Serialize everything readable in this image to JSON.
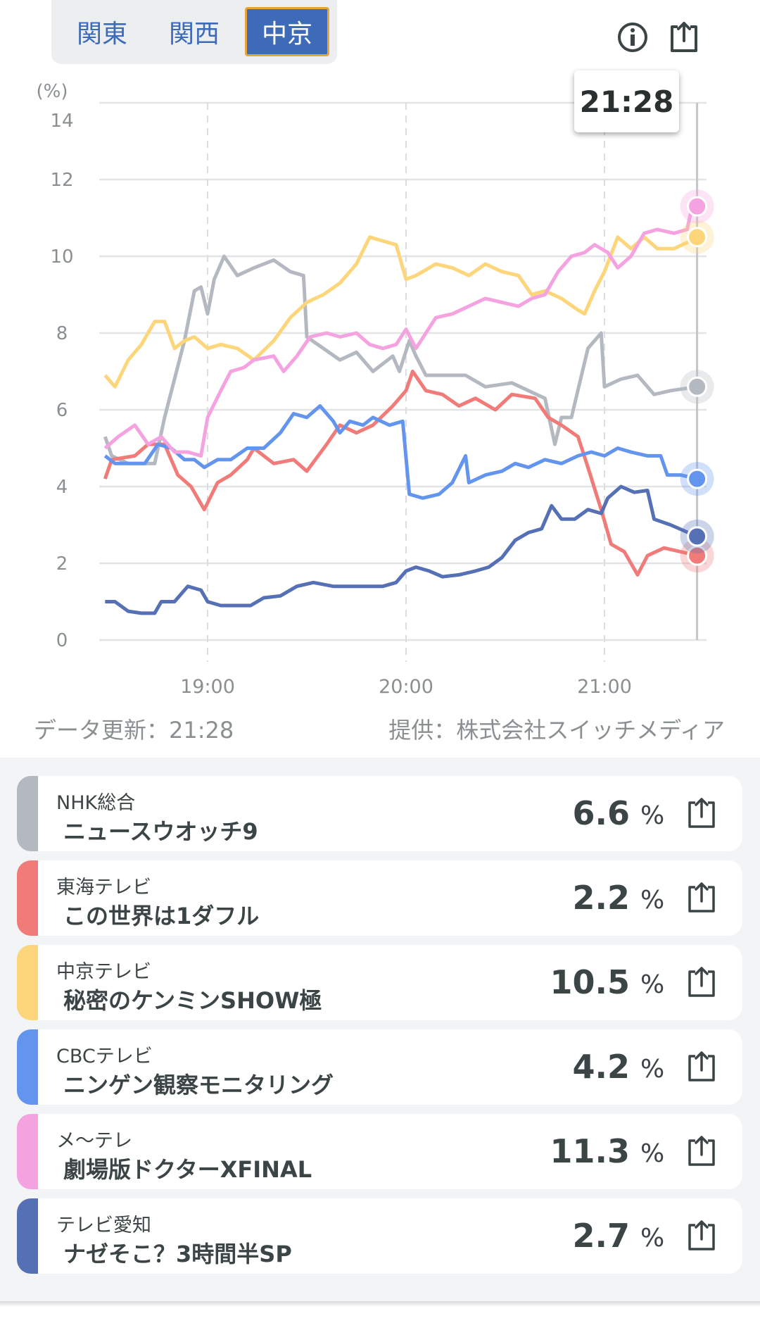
{
  "region_tabs": [
    {
      "label": "関東",
      "active": false
    },
    {
      "label": "関西",
      "active": false
    },
    {
      "label": "中京",
      "active": true
    }
  ],
  "icons": {
    "info": "info-circle-icon",
    "share": "share-icon"
  },
  "tooltip": {
    "time": "21:28"
  },
  "footer": {
    "updated": "データ更新：21:28",
    "provider": "提供：株式会社スイッチメディア"
  },
  "chart_data": {
    "type": "line",
    "ylabel": "(%)",
    "ylim": [
      0,
      14
    ],
    "yticks": [
      "0",
      "2",
      "4",
      "6",
      "8",
      "10",
      "12",
      "14"
    ],
    "xticks": [
      "19:00",
      "20:00",
      "21:00"
    ],
    "xlim": [
      "18:29",
      "21:28"
    ],
    "grid": true,
    "cursor": "21:28",
    "series": [
      {
        "name": "NHK総合",
        "color": "#b4b9c1",
        "points": [
          [
            "18:29",
            5.3
          ],
          [
            "18:31",
            4.8
          ],
          [
            "18:36",
            4.6
          ],
          [
            "18:44",
            4.6
          ],
          [
            "18:47",
            5.8
          ],
          [
            "18:53",
            7.8
          ],
          [
            "18:56",
            9.1
          ],
          [
            "18:58",
            9.2
          ],
          [
            "19:00",
            8.5
          ],
          [
            "19:02",
            9.4
          ],
          [
            "19:05",
            10.0
          ],
          [
            "19:09",
            9.5
          ],
          [
            "19:14",
            9.7
          ],
          [
            "19:20",
            9.9
          ],
          [
            "19:25",
            9.6
          ],
          [
            "19:29",
            9.5
          ],
          [
            "19:30",
            7.9
          ],
          [
            "19:35",
            7.6
          ],
          [
            "19:40",
            7.3
          ],
          [
            "19:45",
            7.5
          ],
          [
            "19:50",
            7.0
          ],
          [
            "19:56",
            7.4
          ],
          [
            "19:58",
            7.0
          ],
          [
            "20:01",
            7.8
          ],
          [
            "20:03",
            7.4
          ],
          [
            "20:06",
            6.9
          ],
          [
            "20:11",
            6.9
          ],
          [
            "20:18",
            6.9
          ],
          [
            "20:24",
            6.6
          ],
          [
            "20:32",
            6.7
          ],
          [
            "20:37",
            6.5
          ],
          [
            "20:42",
            6.3
          ],
          [
            "20:45",
            5.1
          ],
          [
            "20:47",
            5.8
          ],
          [
            "20:50",
            5.8
          ],
          [
            "20:55",
            7.6
          ],
          [
            "20:59",
            8.0
          ],
          [
            "21:00",
            6.6
          ],
          [
            "21:05",
            6.8
          ],
          [
            "21:10",
            6.9
          ],
          [
            "21:15",
            6.4
          ],
          [
            "21:20",
            6.5
          ],
          [
            "21:28",
            6.6
          ]
        ]
      },
      {
        "name": "東海テレビ",
        "color": "#f07b78",
        "points": [
          [
            "18:29",
            4.2
          ],
          [
            "18:31",
            4.7
          ],
          [
            "18:38",
            4.8
          ],
          [
            "18:42",
            5.1
          ],
          [
            "18:47",
            5.1
          ],
          [
            "18:51",
            4.3
          ],
          [
            "18:55",
            4.0
          ],
          [
            "18:59",
            3.4
          ],
          [
            "19:03",
            4.1
          ],
          [
            "19:07",
            4.3
          ],
          [
            "19:12",
            4.7
          ],
          [
            "19:14",
            5.0
          ],
          [
            "19:20",
            4.6
          ],
          [
            "19:26",
            4.7
          ],
          [
            "19:30",
            4.4
          ],
          [
            "19:36",
            5.1
          ],
          [
            "19:40",
            5.6
          ],
          [
            "19:45",
            5.4
          ],
          [
            "19:50",
            5.6
          ],
          [
            "19:56",
            6.1
          ],
          [
            "20:00",
            6.5
          ],
          [
            "20:02",
            7.0
          ],
          [
            "20:06",
            6.5
          ],
          [
            "20:11",
            6.4
          ],
          [
            "20:16",
            6.1
          ],
          [
            "20:21",
            6.3
          ],
          [
            "20:27",
            6.0
          ],
          [
            "20:32",
            6.4
          ],
          [
            "20:39",
            6.3
          ],
          [
            "20:43",
            5.8
          ],
          [
            "20:47",
            5.6
          ],
          [
            "20:52",
            5.3
          ],
          [
            "20:55",
            4.5
          ],
          [
            "20:59",
            3.4
          ],
          [
            "21:02",
            2.5
          ],
          [
            "21:06",
            2.3
          ],
          [
            "21:10",
            1.7
          ],
          [
            "21:13",
            2.2
          ],
          [
            "21:18",
            2.4
          ],
          [
            "21:23",
            2.3
          ],
          [
            "21:28",
            2.2
          ]
        ]
      },
      {
        "name": "中京テレビ",
        "color": "#fdd57a",
        "points": [
          [
            "18:29",
            6.9
          ],
          [
            "18:32",
            6.6
          ],
          [
            "18:36",
            7.3
          ],
          [
            "18:40",
            7.7
          ],
          [
            "18:44",
            8.3
          ],
          [
            "18:47",
            8.3
          ],
          [
            "18:50",
            7.6
          ],
          [
            "18:53",
            7.8
          ],
          [
            "18:56",
            7.9
          ],
          [
            "19:00",
            7.6
          ],
          [
            "19:04",
            7.7
          ],
          [
            "19:09",
            7.6
          ],
          [
            "19:14",
            7.3
          ],
          [
            "19:20",
            7.8
          ],
          [
            "19:25",
            8.4
          ],
          [
            "19:30",
            8.8
          ],
          [
            "19:35",
            9.0
          ],
          [
            "19:40",
            9.3
          ],
          [
            "19:45",
            9.8
          ],
          [
            "19:49",
            10.5
          ],
          [
            "19:53",
            10.4
          ],
          [
            "19:57",
            10.3
          ],
          [
            "20:00",
            9.4
          ],
          [
            "20:03",
            9.5
          ],
          [
            "20:09",
            9.8
          ],
          [
            "20:14",
            9.7
          ],
          [
            "20:19",
            9.5
          ],
          [
            "20:24",
            9.8
          ],
          [
            "20:29",
            9.6
          ],
          [
            "20:34",
            9.5
          ],
          [
            "20:38",
            9.0
          ],
          [
            "20:42",
            9.1
          ],
          [
            "20:47",
            8.9
          ],
          [
            "20:52",
            8.6
          ],
          [
            "20:54",
            8.5
          ],
          [
            "20:57",
            9.1
          ],
          [
            "21:00",
            9.6
          ],
          [
            "21:04",
            10.5
          ],
          [
            "21:08",
            10.2
          ],
          [
            "21:12",
            10.5
          ],
          [
            "21:16",
            10.2
          ],
          [
            "21:21",
            10.2
          ],
          [
            "21:26",
            10.4
          ],
          [
            "21:28",
            10.5
          ]
        ]
      },
      {
        "name": "CBCテレビ",
        "color": "#6495ee",
        "points": [
          [
            "18:29",
            4.8
          ],
          [
            "18:32",
            4.6
          ],
          [
            "18:36",
            4.6
          ],
          [
            "18:41",
            4.6
          ],
          [
            "18:45",
            5.1
          ],
          [
            "18:49",
            5.0
          ],
          [
            "18:53",
            4.7
          ],
          [
            "18:56",
            4.7
          ],
          [
            "18:59",
            4.5
          ],
          [
            "19:03",
            4.7
          ],
          [
            "19:07",
            4.7
          ],
          [
            "19:12",
            5.0
          ],
          [
            "19:17",
            5.0
          ],
          [
            "19:22",
            5.4
          ],
          [
            "19:26",
            5.9
          ],
          [
            "19:30",
            5.8
          ],
          [
            "19:34",
            6.1
          ],
          [
            "19:38",
            5.7
          ],
          [
            "19:40",
            5.4
          ],
          [
            "19:43",
            5.7
          ],
          [
            "19:47",
            5.6
          ],
          [
            "19:50",
            5.8
          ],
          [
            "19:55",
            5.6
          ],
          [
            "19:59",
            5.7
          ],
          [
            "20:01",
            3.8
          ],
          [
            "20:05",
            3.7
          ],
          [
            "20:10",
            3.8
          ],
          [
            "20:14",
            4.1
          ],
          [
            "20:18",
            4.8
          ],
          [
            "20:19",
            4.1
          ],
          [
            "20:24",
            4.3
          ],
          [
            "20:29",
            4.4
          ],
          [
            "20:33",
            4.6
          ],
          [
            "20:37",
            4.5
          ],
          [
            "20:42",
            4.7
          ],
          [
            "20:47",
            4.6
          ],
          [
            "20:52",
            4.8
          ],
          [
            "20:56",
            4.9
          ],
          [
            "21:00",
            4.8
          ],
          [
            "21:04",
            5.0
          ],
          [
            "21:08",
            4.9
          ],
          [
            "21:13",
            4.8
          ],
          [
            "21:17",
            4.8
          ],
          [
            "21:19",
            4.3
          ],
          [
            "21:23",
            4.3
          ],
          [
            "21:28",
            4.2
          ]
        ]
      },
      {
        "name": "メ〜テレ",
        "color": "#f4a2e0",
        "points": [
          [
            "18:29",
            5.0
          ],
          [
            "18:33",
            5.3
          ],
          [
            "18:38",
            5.6
          ],
          [
            "18:42",
            5.1
          ],
          [
            "18:46",
            5.3
          ],
          [
            "18:50",
            4.9
          ],
          [
            "18:54",
            4.9
          ],
          [
            "18:58",
            4.8
          ],
          [
            "19:00",
            5.8
          ],
          [
            "19:04",
            6.5
          ],
          [
            "19:07",
            7.0
          ],
          [
            "19:11",
            7.1
          ],
          [
            "19:14",
            7.3
          ],
          [
            "19:20",
            7.4
          ],
          [
            "19:23",
            7.0
          ],
          [
            "19:27",
            7.4
          ],
          [
            "19:31",
            7.9
          ],
          [
            "19:36",
            8.0
          ],
          [
            "19:40",
            7.9
          ],
          [
            "19:45",
            8.0
          ],
          [
            "19:49",
            7.7
          ],
          [
            "19:53",
            7.6
          ],
          [
            "19:57",
            7.7
          ],
          [
            "20:00",
            8.1
          ],
          [
            "20:03",
            7.6
          ],
          [
            "20:09",
            8.4
          ],
          [
            "20:14",
            8.5
          ],
          [
            "20:19",
            8.7
          ],
          [
            "20:24",
            8.9
          ],
          [
            "20:29",
            8.8
          ],
          [
            "20:34",
            8.7
          ],
          [
            "20:38",
            8.9
          ],
          [
            "20:42",
            9.0
          ],
          [
            "20:46",
            9.6
          ],
          [
            "20:50",
            10.0
          ],
          [
            "20:54",
            10.1
          ],
          [
            "20:57",
            10.3
          ],
          [
            "21:01",
            10.1
          ],
          [
            "21:04",
            9.7
          ],
          [
            "21:08",
            10.0
          ],
          [
            "21:12",
            10.6
          ],
          [
            "21:16",
            10.7
          ],
          [
            "21:21",
            10.6
          ],
          [
            "21:25",
            10.7
          ],
          [
            "21:26",
            11.1
          ],
          [
            "21:28",
            11.3
          ]
        ]
      },
      {
        "name": "テレビ愛知",
        "color": "#5670b5",
        "points": [
          [
            "18:29",
            1.0
          ],
          [
            "18:32",
            1.0
          ],
          [
            "18:36",
            0.75
          ],
          [
            "18:40",
            0.7
          ],
          [
            "18:44",
            0.7
          ],
          [
            "18:46",
            1.0
          ],
          [
            "18:50",
            1.0
          ],
          [
            "18:54",
            1.4
          ],
          [
            "18:58",
            1.3
          ],
          [
            "19:00",
            1.0
          ],
          [
            "19:04",
            0.9
          ],
          [
            "19:08",
            0.9
          ],
          [
            "19:13",
            0.9
          ],
          [
            "19:17",
            1.1
          ],
          [
            "19:22",
            1.15
          ],
          [
            "19:27",
            1.4
          ],
          [
            "19:32",
            1.5
          ],
          [
            "19:38",
            1.4
          ],
          [
            "19:43",
            1.4
          ],
          [
            "19:48",
            1.4
          ],
          [
            "19:53",
            1.4
          ],
          [
            "19:57",
            1.5
          ],
          [
            "20:00",
            1.8
          ],
          [
            "20:03",
            1.9
          ],
          [
            "20:07",
            1.8
          ],
          [
            "20:11",
            1.65
          ],
          [
            "20:16",
            1.7
          ],
          [
            "20:21",
            1.8
          ],
          [
            "20:25",
            1.9
          ],
          [
            "20:29",
            2.15
          ],
          [
            "20:33",
            2.6
          ],
          [
            "20:37",
            2.8
          ],
          [
            "20:41",
            2.9
          ],
          [
            "20:44",
            3.5
          ],
          [
            "20:47",
            3.15
          ],
          [
            "20:51",
            3.15
          ],
          [
            "20:55",
            3.4
          ],
          [
            "20:59",
            3.3
          ],
          [
            "21:01",
            3.7
          ],
          [
            "21:05",
            4.0
          ],
          [
            "21:09",
            3.85
          ],
          [
            "21:13",
            3.9
          ],
          [
            "21:15",
            3.15
          ],
          [
            "21:20",
            3.0
          ],
          [
            "21:28",
            2.7
          ]
        ]
      }
    ]
  },
  "channels": [
    {
      "channel": "NHK総合",
      "program": "ニュースウオッチ9",
      "value": "6.6",
      "unit": "%",
      "color": "#b4b9c1"
    },
    {
      "channel": "東海テレビ",
      "program": "この世界は1ダフル",
      "value": "2.2",
      "unit": "%",
      "color": "#f07b78"
    },
    {
      "channel": "中京テレビ",
      "program": "秘密のケンミンSHOW極",
      "value": "10.5",
      "unit": "%",
      "color": "#fdd57a"
    },
    {
      "channel": "CBCテレビ",
      "program": "ニンゲン観察モニタリング",
      "value": "4.2",
      "unit": "%",
      "color": "#6495ee"
    },
    {
      "channel": "メ〜テレ",
      "program": "劇場版ドクターXFINAL",
      "value": "11.3",
      "unit": "%",
      "color": "#f4a2e0"
    },
    {
      "channel": "テレビ愛知",
      "program": "ナゼそこ？3時間半SP",
      "value": "2.7",
      "unit": "%",
      "color": "#5670b5"
    }
  ]
}
